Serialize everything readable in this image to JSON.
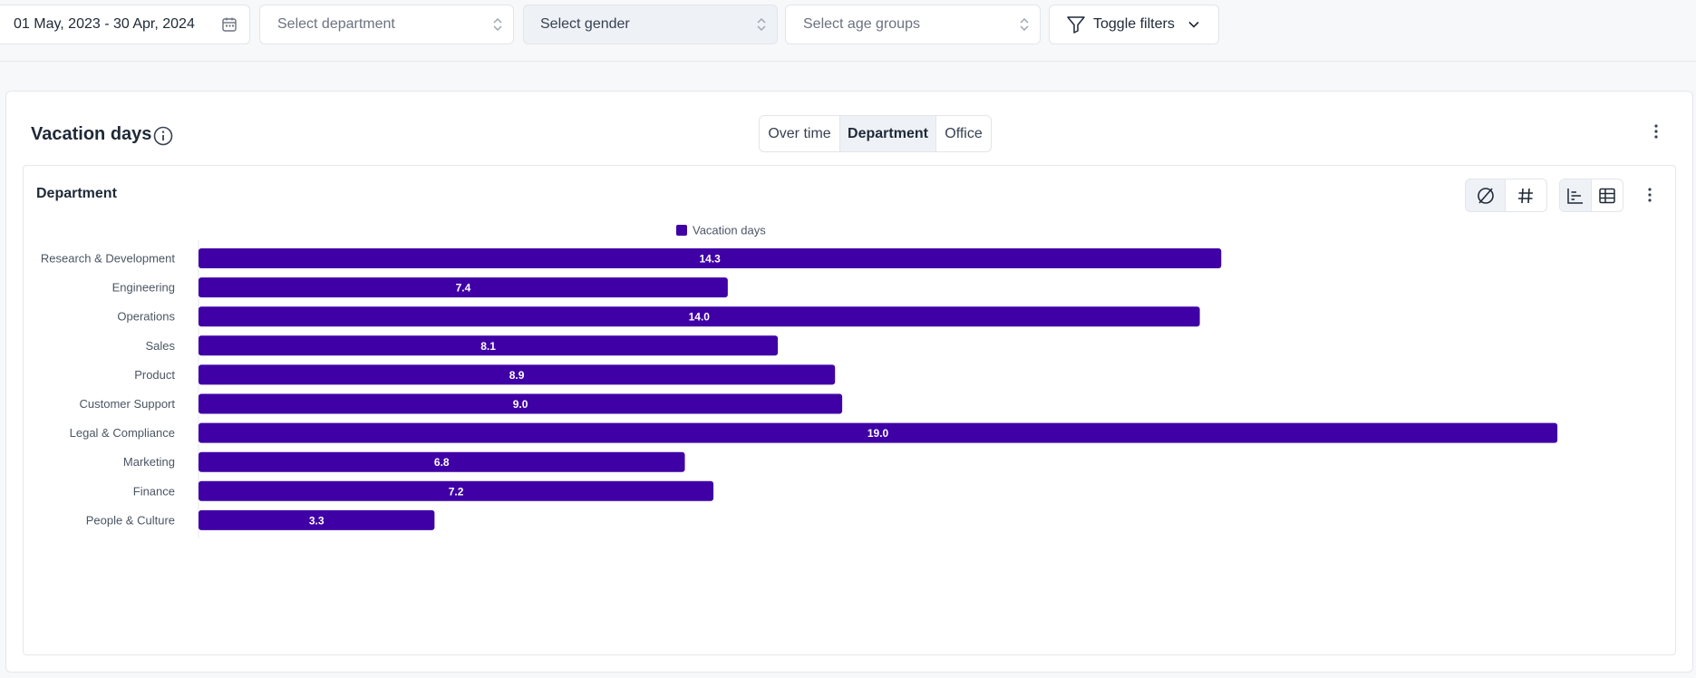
{
  "filters": {
    "date_range": "01 May, 2023 - 30 Apr, 2024",
    "department_placeholder": "Select department",
    "gender_placeholder": "Select gender",
    "age_placeholder": "Select age groups",
    "toggle_label": "Toggle filters"
  },
  "card": {
    "title": "Vacation days",
    "tabs": [
      {
        "label": "Over time",
        "selected": false
      },
      {
        "label": "Department",
        "selected": true
      },
      {
        "label": "Office",
        "selected": false
      }
    ]
  },
  "panel": {
    "title": "Department",
    "toolbar": [
      "empty-set-icon",
      "hash-icon",
      "bar-chart-icon",
      "table-icon"
    ]
  },
  "colors": {
    "bar": "#3f00a6",
    "bar_text": "#ffffff",
    "axis_text": "#4b5563"
  },
  "chart_data": {
    "type": "bar",
    "orientation": "horizontal",
    "legend": "top-center",
    "categories": [
      "Research & Development",
      "Engineering",
      "Operations",
      "Sales",
      "Product",
      "Customer Support",
      "Legal & Compliance",
      "Marketing",
      "Finance",
      "People & Culture"
    ],
    "series": [
      {
        "name": "Vacation days",
        "values": [
          14.3,
          7.4,
          14.0,
          8.1,
          8.9,
          9.0,
          19.0,
          6.8,
          7.2,
          3.3
        ]
      }
    ],
    "value_labels": [
      "14.3",
      "7.4",
      "14.0",
      "8.1",
      "8.9",
      "9.0",
      "19.0",
      "6.8",
      "7.2",
      "3.3"
    ]
  }
}
